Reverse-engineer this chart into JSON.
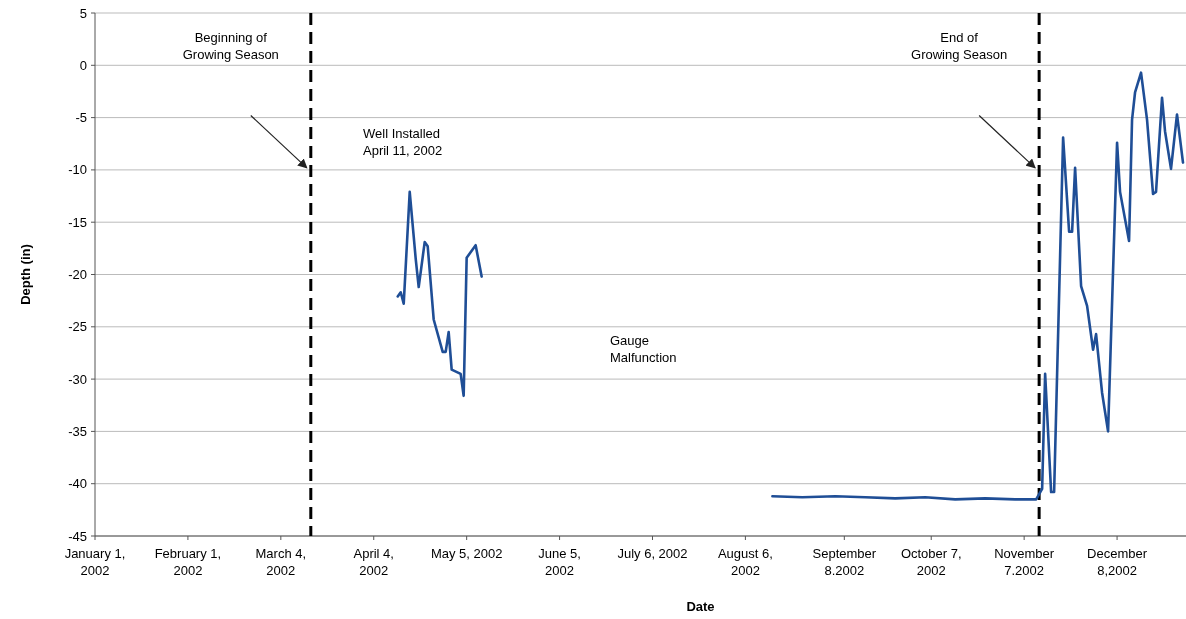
{
  "chart_data": {
    "type": "line",
    "xlabel": "Date",
    "ylabel": "Depth (in)",
    "xlim": [
      "2002-01-01",
      "2002-12-31"
    ],
    "ylim": [
      -45,
      5
    ],
    "yticks": [
      -45,
      -40,
      -35,
      -30,
      -25,
      -20,
      -15,
      -10,
      -5,
      0,
      5
    ],
    "xticks": [
      {
        "value": "2002-01-01",
        "label": "January 1,\n2002"
      },
      {
        "value": "2002-02-01",
        "label": "February 1,\n2002"
      },
      {
        "value": "2002-03-04",
        "label": "March 4,\n2002"
      },
      {
        "value": "2002-04-04",
        "label": "April 4,\n2002"
      },
      {
        "value": "2002-05-05",
        "label": "May 5, 2002"
      },
      {
        "value": "2002-06-05",
        "label": "June 5,\n2002"
      },
      {
        "value": "2002-07-06",
        "label": "July 6, 2002"
      },
      {
        "value": "2002-08-06",
        "label": "August 6,\n2002"
      },
      {
        "value": "2002-09-08",
        "label": "September\n8.2002"
      },
      {
        "value": "2002-10-07",
        "label": "October 7,\n2002"
      },
      {
        "value": "2002-11-07",
        "label": "November\n7.2002"
      },
      {
        "value": "2002-12-08",
        "label": "December\n8,2002"
      }
    ],
    "grid": "y",
    "marker": "none",
    "line_style": "solid",
    "ref_lines": [
      {
        "axis": "x",
        "value": "2002-03-14",
        "label": "Beginning of\nGrowing Season",
        "color": "#000000",
        "line_style": "dashed"
      },
      {
        "axis": "x",
        "value": "2002-11-12",
        "label": "End of\nGrowing Season",
        "color": "#000000",
        "line_style": "dashed"
      }
    ],
    "annotations": [
      "Well Installed\nApril 11, 2002",
      "Gauge\nMalfunction"
    ],
    "series": [
      {
        "color": "#1f4e96",
        "x": [
          "2002-04-12",
          "2002-04-13",
          "2002-04-14",
          "2002-04-16",
          "2002-04-18",
          "2002-04-19",
          "2002-04-21",
          "2002-04-22",
          "2002-04-24",
          "2002-04-27",
          "2002-04-28",
          "2002-04-29",
          "2002-04-30",
          "2002-05-03",
          "2002-05-04",
          "2002-05-05",
          "2002-05-08",
          "2002-05-10",
          "2002-06-20",
          "2002-08-15",
          "2002-08-25",
          "2002-09-05",
          "2002-09-15",
          "2002-09-25",
          "2002-10-05",
          "2002-10-15",
          "2002-10-25",
          "2002-11-04",
          "2002-11-11",
          "2002-11-13",
          "2002-11-14",
          "2002-11-16",
          "2002-11-17",
          "2002-11-20",
          "2002-11-22",
          "2002-11-23",
          "2002-11-24",
          "2002-11-26",
          "2002-11-28",
          "2002-11-30",
          "2002-12-01",
          "2002-12-03",
          "2002-12-05",
          "2002-12-08",
          "2002-12-09",
          "2002-12-12",
          "2002-12-13",
          "2002-12-14",
          "2002-12-16",
          "2002-12-18",
          "2002-12-20",
          "2002-12-21",
          "2002-12-23",
          "2002-12-24",
          "2002-12-26",
          "2002-12-28",
          "2002-12-30"
        ],
        "values": [
          -22.1,
          -21.7,
          -22.8,
          -12.1,
          -18.5,
          -21.2,
          -16.9,
          -17.3,
          -24.3,
          -27.4,
          -27.4,
          -25.5,
          -29.1,
          -29.5,
          -31.6,
          -18.4,
          -17.2,
          -20.2,
          null,
          -41.2,
          -41.3,
          -41.2,
          -41.3,
          -41.4,
          -41.3,
          -41.5,
          -41.4,
          -41.5,
          -41.5,
          -40.5,
          -29.5,
          -40.8,
          -40.8,
          -6.9,
          -15.9,
          -15.9,
          -9.8,
          -21.1,
          -23.0,
          -27.2,
          -25.7,
          -31.3,
          -35.0,
          -7.4,
          -12.1,
          -16.8,
          -5.2,
          -2.6,
          -0.7,
          -5.2,
          -12.3,
          -12.1,
          -3.1,
          -6.3,
          -9.9,
          -4.7,
          -9.3
        ]
      }
    ]
  }
}
